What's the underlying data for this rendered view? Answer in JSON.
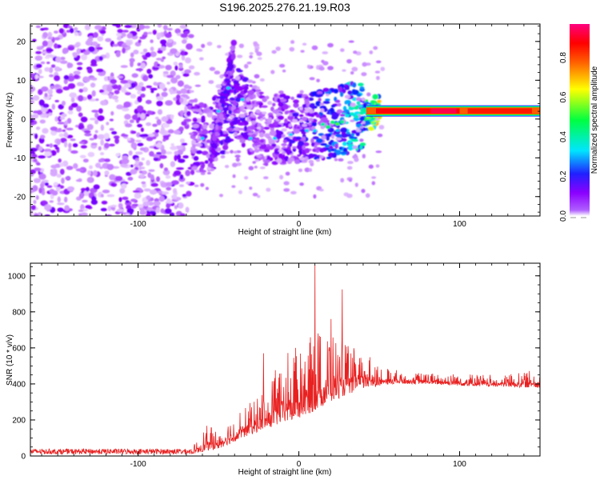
{
  "title": "S196.2025.276.21.19.R03",
  "chart_data": [
    {
      "type": "heatmap",
      "name": "spectrogram",
      "xlabel": "Height of straight line (km)",
      "ylabel": "Frequency (Hz)",
      "xlim": [
        -167,
        150
      ],
      "ylim": [
        -25,
        24.5
      ],
      "xticks": [
        -100,
        0,
        100
      ],
      "xtick_labels": [
        "-100",
        "0",
        "100"
      ],
      "yticks": [
        -20,
        -10,
        0,
        10,
        20
      ],
      "ytick_labels": [
        "-20",
        "-10",
        "0",
        "10",
        "20"
      ],
      "colorbar": {
        "label": "Normalized spectral amplitude",
        "range": [
          0,
          0.97
        ],
        "ticks": [
          0.0,
          0.2,
          0.4,
          0.6,
          0.8
        ],
        "tick_labels": [
          "0.0",
          "0.2",
          "0.4",
          "0.6",
          "0.8"
        ],
        "colors": [
          "#ffffff",
          "#8b00ff",
          "#1010ff",
          "#00e5ff",
          "#00ff40",
          "#ffff00",
          "#ff6000",
          "#ff0000",
          "#ff0080"
        ]
      },
      "features": [
        {
          "name": "broadband noise",
          "x_range": [
            -167,
            -67
          ],
          "freq_range": [
            -25,
            24.5
          ],
          "amplitude": 0.05
        },
        {
          "name": "rising streak",
          "x_range": [
            -55,
            -40
          ],
          "freq_range": [
            -10,
            18
          ],
          "amplitude": 0.15
        },
        {
          "name": "main track",
          "x": [
            -55,
            -40,
            -30,
            -20,
            0,
            20,
            40,
            50,
            100,
            150
          ],
          "freq": [
            -5,
            5,
            0,
            -3,
            -2,
            -1,
            1,
            2,
            2,
            2
          ],
          "amplitude": [
            0.15,
            0.2,
            0.15,
            0.12,
            0.2,
            0.3,
            0.5,
            0.85,
            0.85,
            0.7
          ]
        }
      ]
    },
    {
      "type": "line",
      "name": "snr",
      "xlabel": "Height of straight line (km)",
      "ylabel": "SNR (10 * v/v)",
      "xlim": [
        -167,
        150
      ],
      "ylim": [
        0,
        1070
      ],
      "xticks": [
        -100,
        0,
        100
      ],
      "xtick_labels": [
        "-100",
        "0",
        "100"
      ],
      "yticks": [
        0,
        200,
        400,
        600,
        800,
        1000
      ],
      "ytick_labels": [
        "0",
        "200",
        "400",
        "600",
        "800",
        "1000"
      ],
      "series": [
        {
          "name": "SNR",
          "color": "#e82020",
          "envelope": {
            "x": [
              -167,
              -67,
              -57,
              -50,
              -40,
              -30,
              -20,
              -10,
              0,
              10,
              20,
              30,
              40,
              50,
              60,
              80,
              100,
              120,
              140,
              150
            ],
            "base": [
              10,
              10,
              30,
              40,
              80,
              120,
              150,
              180,
              200,
              250,
              300,
              340,
              370,
              390,
              400,
              400,
              390,
              385,
              380,
              380
            ],
            "peak": [
              40,
              40,
              170,
              140,
              220,
              300,
              380,
              560,
              620,
              680,
              700,
              620,
              590,
              500,
              480,
              460,
              460,
              450,
              470,
              480
            ]
          },
          "spikes": [
            {
              "x": -22,
              "y": 570
            },
            {
              "x": 10,
              "y": 1060
            },
            {
              "x": 20,
              "y": 760
            },
            {
              "x": 27,
              "y": 925
            },
            {
              "x": 12,
              "y": 680
            },
            {
              "x": -2,
              "y": 600
            }
          ]
        }
      ]
    }
  ]
}
